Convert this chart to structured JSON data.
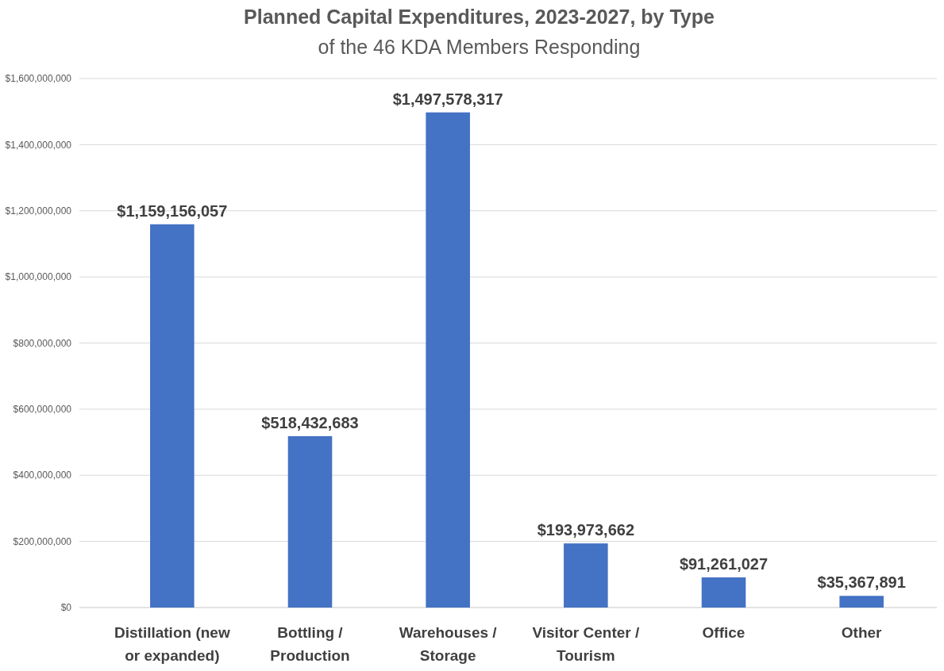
{
  "chart_data": {
    "type": "bar",
    "title": "Planned Capital Expenditures, 2023-2027, by Type",
    "subtitle": "of the 46 KDA Members Responding",
    "categories": [
      "Distillation (new or expanded)",
      "Bottling / Production",
      "Warehouses / Storage",
      "Visitor Center / Tourism",
      "Office",
      "Other"
    ],
    "values": [
      1159156057,
      518432683,
      1497578317,
      193973662,
      91261027,
      35367891
    ],
    "value_labels": [
      "$1,159,156,057",
      "$518,432,683",
      "$1,497,578,317",
      "$193,973,662",
      "$91,261,027",
      "$35,367,891"
    ],
    "color": "#4472c4",
    "ylim": [
      0,
      1600000000
    ],
    "yticks": [
      {
        "value": 0,
        "label": "$0"
      },
      {
        "value": 200000000,
        "label": "$200,000,000"
      },
      {
        "value": 400000000,
        "label": "$400,000,000"
      },
      {
        "value": 600000000,
        "label": "$600,000,000"
      },
      {
        "value": 800000000,
        "label": "$800,000,000"
      },
      {
        "value": 1000000000,
        "label": "$1,000,000,000"
      },
      {
        "value": 1200000000,
        "label": "$1,200,000,000"
      },
      {
        "value": 1400000000,
        "label": "$1,400,000,000"
      },
      {
        "value": 1600000000,
        "label": "$1,600,000,000"
      }
    ],
    "grid": "y"
  }
}
